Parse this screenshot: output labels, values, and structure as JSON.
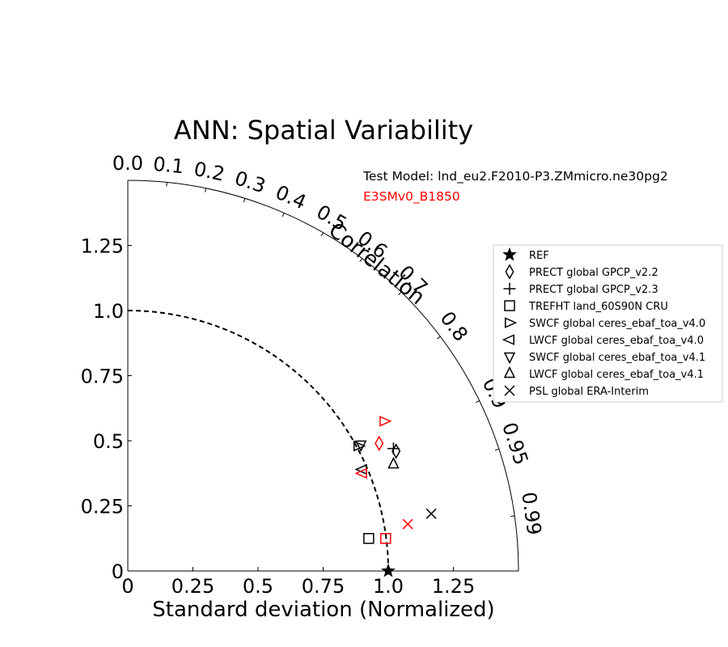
{
  "chart_data": {
    "type": "scatter",
    "title": "ANN: Spatial Variability",
    "xlabel": "Standard deviation (Normalized)",
    "ylabel": "",
    "xlim": [
      0,
      1.5
    ],
    "ylim": [
      0,
      1.5
    ],
    "x_ticks": [
      "0",
      "0.25",
      "0.5",
      "0.75",
      "1.0",
      "1.25"
    ],
    "y_ticks": [
      "0",
      "0.25",
      "0.5",
      "0.75",
      "1.0",
      "1.25"
    ],
    "correlation_label": "Correlation",
    "correlation_ticks": [
      "0.0",
      "0.1",
      "0.2",
      "0.3",
      "0.4",
      "0.5",
      "0.6",
      "0.7",
      "0.8",
      "0.9",
      "0.95",
      "0.99"
    ],
    "reference_arc_radius": 1.0,
    "test_model_label": "Test Model: lnd_eu2.F2010-P3.ZMmicro.ne30pg2",
    "reference_model_label": "E3SMv0_B1850",
    "colors": {
      "test": "#000000",
      "reference": "#ff0000"
    },
    "legend": {
      "position": "right",
      "entries": [
        {
          "label": "REF",
          "marker": "star"
        },
        {
          "label": "PRECT global GPCP_v2.2",
          "marker": "diamond"
        },
        {
          "label": "PRECT global GPCP_v2.3",
          "marker": "plus"
        },
        {
          "label": "TREFHT land_60S90N CRU",
          "marker": "square"
        },
        {
          "label": "SWCF global ceres_ebaf_toa_v4.0",
          "marker": "triangle-right"
        },
        {
          "label": "LWCF global ceres_ebaf_toa_v4.0",
          "marker": "triangle-left"
        },
        {
          "label": "SWCF global ceres_ebaf_toa_v4.1",
          "marker": "triangle-down"
        },
        {
          "label": "LWCF global ceres_ebaf_toa_v4.1",
          "marker": "triangle-up"
        },
        {
          "label": "PSL global ERA-Interim",
          "marker": "x"
        }
      ]
    },
    "points": [
      {
        "name": "REF",
        "marker": "star",
        "color": "black",
        "x": 1.0,
        "y": 0.0
      },
      {
        "name": "PRECT global GPCP_v2.2",
        "marker": "diamond",
        "color": "black",
        "x": 1.03,
        "y": 0.46
      },
      {
        "name": "PRECT global GPCP_v2.3",
        "marker": "plus",
        "color": "black",
        "x": 1.02,
        "y": 0.47
      },
      {
        "name": "TREFHT land_60S90N CRU",
        "marker": "square",
        "color": "black",
        "x": 0.925,
        "y": 0.125
      },
      {
        "name": "SWCF global ceres_ebaf_toa_v4.0",
        "marker": "triangle-right",
        "color": "black",
        "x": 0.885,
        "y": 0.48
      },
      {
        "name": "LWCF global ceres_ebaf_toa_v4.0",
        "marker": "triangle-left",
        "color": "black",
        "x": 0.9,
        "y": 0.39
      },
      {
        "name": "SWCF global ceres_ebaf_toa_v4.1",
        "marker": "triangle-down",
        "color": "black",
        "x": 0.895,
        "y": 0.485
      },
      {
        "name": "LWCF global ceres_ebaf_toa_v4.1",
        "marker": "triangle-up",
        "color": "black",
        "x": 1.02,
        "y": 0.41
      },
      {
        "name": "PSL global ERA-Interim",
        "marker": "x",
        "color": "black",
        "x": 1.165,
        "y": 0.22
      },
      {
        "name": "PRECT global GPCP_v2.2",
        "marker": "diamond",
        "color": "red",
        "x": 0.965,
        "y": 0.49
      },
      {
        "name": "SWCF global ceres_ebaf_toa_v4.0",
        "marker": "triangle-right",
        "color": "red",
        "x": 0.985,
        "y": 0.575
      },
      {
        "name": "LWCF global ceres_ebaf_toa_v4.0",
        "marker": "triangle-left",
        "color": "red",
        "x": 0.9,
        "y": 0.375
      },
      {
        "name": "TREFHT land_60S90N CRU",
        "marker": "square",
        "color": "red",
        "x": 0.99,
        "y": 0.125
      },
      {
        "name": "PSL global ERA-Interim",
        "marker": "x",
        "color": "red",
        "x": 1.075,
        "y": 0.18
      }
    ]
  }
}
